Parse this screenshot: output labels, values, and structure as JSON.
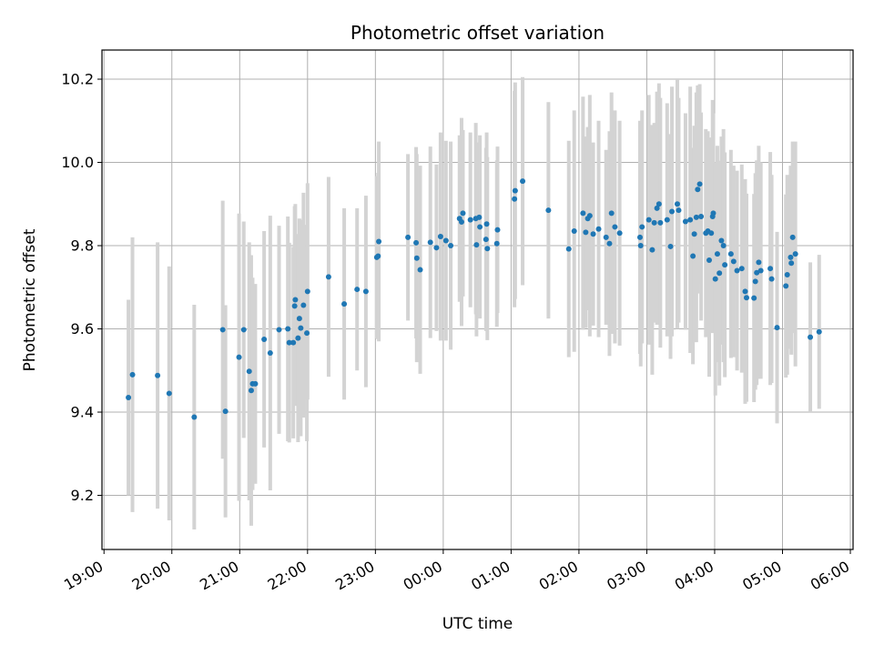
{
  "chart_data": {
    "type": "scatter",
    "title": "Photometric offset variation",
    "xlabel": "UTC time",
    "ylabel": "Photometric offset",
    "ylim": [
      9.07,
      10.27
    ],
    "xlim_hours": [
      18.97,
      30.04
    ],
    "grid": true,
    "x_ticks": [
      {
        "hours": 19,
        "label": "19:00"
      },
      {
        "hours": 20,
        "label": "20:00"
      },
      {
        "hours": 21,
        "label": "21:00"
      },
      {
        "hours": 22,
        "label": "22:00"
      },
      {
        "hours": 23,
        "label": "23:00"
      },
      {
        "hours": 24,
        "label": "00:00"
      },
      {
        "hours": 25,
        "label": "01:00"
      },
      {
        "hours": 26,
        "label": "02:00"
      },
      {
        "hours": 27,
        "label": "03:00"
      },
      {
        "hours": 28,
        "label": "04:00"
      },
      {
        "hours": 29,
        "label": "05:00"
      },
      {
        "hours": 30,
        "label": "06:00"
      }
    ],
    "y_ticks": [
      {
        "value": 9.2,
        "label": "9.2"
      },
      {
        "value": 9.4,
        "label": "9.4"
      },
      {
        "value": 9.6,
        "label": "9.6"
      },
      {
        "value": 9.8,
        "label": "9.8"
      },
      {
        "value": 10.0,
        "label": "10.0"
      },
      {
        "value": 10.2,
        "label": "10.2"
      }
    ],
    "colors": {
      "points": "#1f77b4",
      "errorbars": "#d3d3d3",
      "grid": "#b0b0b0",
      "axes": "#000000"
    },
    "series": [
      {
        "name": "Photometric offset",
        "points": [
          [
            19.36,
            9.435,
            0.235
          ],
          [
            19.42,
            9.49,
            0.33
          ],
          [
            19.79,
            9.488,
            0.32
          ],
          [
            19.96,
            9.445,
            0.305
          ],
          [
            20.33,
            9.388,
            0.27
          ],
          [
            20.75,
            9.598,
            0.31
          ],
          [
            20.79,
            9.402,
            0.255
          ],
          [
            20.99,
            9.532,
            0.345
          ],
          [
            21.06,
            9.598,
            0.26
          ],
          [
            21.14,
            9.498,
            0.31
          ],
          [
            21.17,
            9.452,
            0.325
          ],
          [
            21.19,
            9.468,
            0.255
          ],
          [
            21.23,
            9.468,
            0.24
          ],
          [
            21.36,
            9.575,
            0.26
          ],
          [
            21.45,
            9.542,
            0.33
          ],
          [
            21.58,
            9.598,
            0.25
          ],
          [
            21.71,
            9.6,
            0.27
          ],
          [
            21.73,
            9.567,
            0.24
          ],
          [
            21.79,
            9.567,
            0.23
          ],
          [
            21.81,
            9.655,
            0.24
          ],
          [
            21.82,
            9.67,
            0.23
          ],
          [
            21.86,
            9.578,
            0.25
          ],
          [
            21.88,
            9.625,
            0.24
          ],
          [
            21.9,
            9.602,
            0.26
          ],
          [
            21.94,
            9.657,
            0.27
          ],
          [
            21.99,
            9.59,
            0.26
          ],
          [
            22.0,
            9.69,
            0.26
          ],
          [
            22.31,
            9.725,
            0.24
          ],
          [
            22.54,
            9.66,
            0.23
          ],
          [
            22.73,
            9.695,
            0.195
          ],
          [
            22.86,
            9.69,
            0.23
          ],
          [
            23.02,
            9.772,
            0.195
          ],
          [
            23.04,
            9.775,
            0.2
          ],
          [
            23.05,
            9.81,
            0.24
          ],
          [
            23.48,
            9.82,
            0.2
          ],
          [
            23.6,
            9.807,
            0.23
          ],
          [
            23.61,
            9.77,
            0.25
          ],
          [
            23.66,
            9.742,
            0.25
          ],
          [
            23.81,
            9.808,
            0.23
          ],
          [
            23.9,
            9.795,
            0.2
          ],
          [
            23.96,
            9.822,
            0.25
          ],
          [
            24.04,
            9.812,
            0.24
          ],
          [
            24.11,
            9.8,
            0.25
          ],
          [
            24.24,
            9.865,
            0.2
          ],
          [
            24.27,
            9.857,
            0.25
          ],
          [
            24.29,
            9.878,
            0.2
          ],
          [
            24.4,
            9.862,
            0.21
          ],
          [
            24.48,
            9.865,
            0.23
          ],
          [
            24.49,
            9.802,
            0.22
          ],
          [
            24.53,
            9.868,
            0.18
          ],
          [
            24.54,
            9.845,
            0.22
          ],
          [
            24.63,
            9.815,
            0.22
          ],
          [
            24.64,
            9.852,
            0.22
          ],
          [
            24.65,
            9.793,
            0.22
          ],
          [
            24.79,
            9.805,
            0.2
          ],
          [
            24.8,
            9.838,
            0.2
          ],
          [
            25.05,
            9.912,
            0.26
          ],
          [
            25.06,
            9.932,
            0.26
          ],
          [
            25.17,
            9.955,
            0.25
          ],
          [
            25.55,
            9.885,
            0.26
          ],
          [
            25.85,
            9.792,
            0.26
          ],
          [
            25.93,
            9.835,
            0.29
          ],
          [
            26.06,
            9.878,
            0.28
          ],
          [
            26.1,
            9.832,
            0.23
          ],
          [
            26.13,
            9.865,
            0.22
          ],
          [
            26.16,
            9.872,
            0.29
          ],
          [
            26.21,
            9.828,
            0.22
          ],
          [
            26.29,
            9.84,
            0.26
          ],
          [
            26.4,
            9.82,
            0.21
          ],
          [
            26.45,
            9.805,
            0.27
          ],
          [
            26.48,
            9.878,
            0.29
          ],
          [
            26.53,
            9.845,
            0.28
          ],
          [
            26.6,
            9.83,
            0.27
          ],
          [
            26.9,
            9.82,
            0.28
          ],
          [
            26.91,
            9.8,
            0.29
          ],
          [
            26.93,
            9.845,
            0.28
          ],
          [
            27.03,
            9.862,
            0.3
          ],
          [
            27.08,
            9.79,
            0.3
          ],
          [
            27.11,
            9.855,
            0.24
          ],
          [
            27.15,
            9.89,
            0.28
          ],
          [
            27.18,
            9.9,
            0.29
          ],
          [
            27.2,
            9.855,
            0.3
          ],
          [
            27.3,
            9.862,
            0.28
          ],
          [
            27.35,
            9.798,
            0.27
          ],
          [
            27.37,
            9.882,
            0.3
          ],
          [
            27.45,
            9.9,
            0.3
          ],
          [
            27.47,
            9.885,
            0.27
          ],
          [
            27.57,
            9.858,
            0.26
          ],
          [
            27.64,
            9.862,
            0.32
          ],
          [
            27.68,
            9.775,
            0.26
          ],
          [
            27.7,
            9.828,
            0.26
          ],
          [
            27.73,
            9.868,
            0.3
          ],
          [
            27.75,
            9.935,
            0.25
          ],
          [
            27.78,
            9.948,
            0.24
          ],
          [
            27.8,
            9.87,
            0.25
          ],
          [
            27.87,
            9.83,
            0.25
          ],
          [
            27.9,
            9.835,
            0.24
          ],
          [
            27.92,
            9.765,
            0.28
          ],
          [
            27.95,
            9.83,
            0.23
          ],
          [
            27.97,
            9.87,
            0.28
          ],
          [
            27.98,
            9.878,
            0.24
          ],
          [
            28.01,
            9.72,
            0.28
          ],
          [
            28.04,
            9.78,
            0.26
          ],
          [
            28.07,
            9.734,
            0.27
          ],
          [
            28.1,
            9.812,
            0.25
          ],
          [
            28.13,
            9.8,
            0.28
          ],
          [
            28.15,
            9.754,
            0.27
          ],
          [
            28.24,
            9.78,
            0.25
          ],
          [
            28.28,
            9.762,
            0.23
          ],
          [
            28.33,
            9.74,
            0.24
          ],
          [
            28.4,
            9.745,
            0.25
          ],
          [
            28.45,
            9.69,
            0.27
          ],
          [
            28.47,
            9.675,
            0.25
          ],
          [
            28.58,
            9.674,
            0.25
          ],
          [
            28.6,
            9.714,
            0.26
          ],
          [
            28.62,
            9.735,
            0.27
          ],
          [
            28.65,
            9.76,
            0.28
          ],
          [
            28.68,
            9.74,
            0.26
          ],
          [
            28.82,
            9.745,
            0.28
          ],
          [
            28.84,
            9.72,
            0.25
          ],
          [
            28.92,
            9.603,
            0.23
          ],
          [
            29.05,
            9.703,
            0.22
          ],
          [
            29.07,
            9.73,
            0.24
          ],
          [
            29.12,
            9.772,
            0.22
          ],
          [
            29.13,
            9.758,
            0.22
          ],
          [
            29.15,
            9.82,
            0.23
          ],
          [
            29.19,
            9.78,
            0.27
          ],
          [
            29.41,
            9.58,
            0.18
          ],
          [
            29.54,
            9.593,
            0.185
          ]
        ]
      }
    ]
  }
}
